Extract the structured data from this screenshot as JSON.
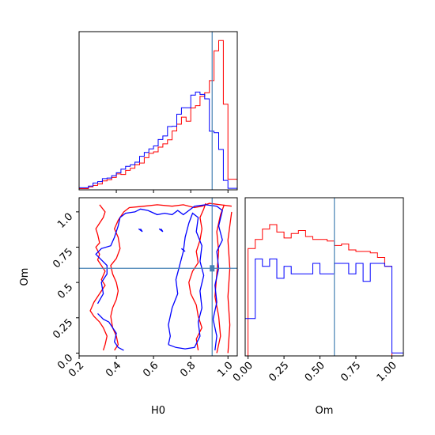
{
  "chart_data": [
    {
      "type": "histogram",
      "panel": "H0 marginal",
      "xlim": [
        0.2,
        1.05
      ],
      "x_ticks": [
        0.4,
        0.6,
        0.8,
        1.0
      ],
      "truth": 0.915,
      "series": [
        {
          "color": "#ff0000",
          "edges": [
            0.2,
            0.25,
            0.275,
            0.3,
            0.325,
            0.35,
            0.375,
            0.4,
            0.425,
            0.45,
            0.475,
            0.5,
            0.525,
            0.55,
            0.575,
            0.6,
            0.625,
            0.65,
            0.675,
            0.7,
            0.725,
            0.75,
            0.775,
            0.8,
            0.825,
            0.85,
            0.875,
            0.9,
            0.925,
            0.95,
            0.975,
            1.0,
            1.05
          ],
          "heights": [
            0.4,
            1.0,
            1.5,
            2.0,
            3.0,
            3.4,
            4.2,
            5.4,
            5.2,
            6.6,
            7.3,
            8.5,
            9.1,
            10.9,
            12.4,
            12.9,
            14.5,
            15.6,
            17.0,
            20.0,
            22.3,
            24.7,
            23.3,
            27.8,
            28.6,
            31.8,
            33.0,
            37.1,
            47.2,
            50.7,
            29.1,
            3.6
          ]
        },
        {
          "color": "#0000ff",
          "edges": [
            0.2,
            0.25,
            0.275,
            0.3,
            0.325,
            0.35,
            0.375,
            0.4,
            0.425,
            0.45,
            0.475,
            0.5,
            0.525,
            0.55,
            0.575,
            0.6,
            0.625,
            0.65,
            0.675,
            0.7,
            0.725,
            0.75,
            0.775,
            0.8,
            0.825,
            0.85,
            0.875,
            0.9,
            0.925,
            0.95,
            0.975,
            1.0,
            1.05
          ],
          "heights": [
            0.7,
            1.3,
            2.3,
            2.8,
            3.8,
            4.0,
            4.8,
            5.8,
            7.0,
            8.0,
            8.5,
            9.4,
            11.4,
            12.7,
            13.9,
            14.9,
            17.1,
            18.3,
            21.5,
            21.6,
            25.7,
            27.9,
            27.9,
            32.2,
            33.2,
            32.4,
            30.9,
            19.9,
            19.4,
            13.7,
            3.2,
            0.5
          ]
        }
      ]
    },
    {
      "type": "contour",
      "panel": "H0 vs Om",
      "xlabel": "H0",
      "ylabel": "Om",
      "xlim": [
        0.2,
        1.05
      ],
      "ylim": [
        -0.02,
        1.1
      ],
      "x_ticks": [
        0.2,
        0.4,
        0.6,
        0.8,
        1.0
      ],
      "y_ticks": [
        0.0,
        0.25,
        0.5,
        0.75,
        1.0
      ],
      "truth": {
        "H0": 0.915,
        "Om": 0.6
      },
      "series": [
        {
          "color": "#ff0000",
          "contours": [
            [
              [
                0.31,
                1.05
              ],
              [
                0.34,
                1.0
              ],
              [
                0.33,
                0.96
              ],
              [
                0.31,
                0.92
              ],
              [
                0.29,
                0.88
              ],
              [
                0.3,
                0.84
              ],
              [
                0.31,
                0.78
              ],
              [
                0.29,
                0.75
              ],
              [
                0.31,
                0.7
              ],
              [
                0.3,
                0.66
              ],
              [
                0.32,
                0.62
              ],
              [
                0.34,
                0.58
              ],
              [
                0.32,
                0.52
              ],
              [
                0.34,
                0.48
              ],
              [
                0.32,
                0.44
              ],
              [
                0.3,
                0.4
              ],
              [
                0.28,
                0.36
              ],
              [
                0.26,
                0.3
              ],
              [
                0.28,
                0.26
              ],
              [
                0.31,
                0.22
              ],
              [
                0.33,
                0.18
              ],
              [
                0.35,
                0.12
              ],
              [
                0.34,
                0.06
              ],
              [
                0.33,
                0.02
              ]
            ],
            [
              [
                0.39,
                0.02
              ],
              [
                0.41,
                0.06
              ],
              [
                0.4,
                0.12
              ],
              [
                0.38,
                0.18
              ],
              [
                0.37,
                0.26
              ],
              [
                0.38,
                0.32
              ],
              [
                0.4,
                0.38
              ],
              [
                0.41,
                0.44
              ],
              [
                0.4,
                0.5
              ],
              [
                0.38,
                0.56
              ],
              [
                0.37,
                0.62
              ],
              [
                0.4,
                0.67
              ],
              [
                0.42,
                0.74
              ],
              [
                0.41,
                0.82
              ],
              [
                0.39,
                0.88
              ],
              [
                0.41,
                0.94
              ],
              [
                0.44,
                1.0
              ],
              [
                0.47,
                1.03
              ],
              [
                0.55,
                1.04
              ],
              [
                0.62,
                1.05
              ],
              [
                0.7,
                1.04
              ],
              [
                0.76,
                1.05
              ],
              [
                0.82,
                1.03
              ],
              [
                0.86,
                1.04
              ],
              [
                0.9,
                1.06
              ],
              [
                0.96,
                1.05
              ],
              [
                1.02,
                1.04
              ]
            ],
            [
              [
                0.84,
                0.02
              ],
              [
                0.83,
                0.1
              ],
              [
                0.86,
                0.18
              ],
              [
                0.84,
                0.26
              ],
              [
                0.83,
                0.34
              ],
              [
                0.8,
                0.42
              ],
              [
                0.79,
                0.5
              ],
              [
                0.81,
                0.58
              ],
              [
                0.84,
                0.64
              ],
              [
                0.83,
                0.72
              ],
              [
                0.85,
                0.8
              ],
              [
                0.86,
                0.88
              ],
              [
                0.85,
                0.96
              ],
              [
                0.87,
                1.02
              ],
              [
                0.88,
                1.06
              ]
            ],
            [
              [
                0.94,
                0.0
              ],
              [
                0.96,
                0.12
              ],
              [
                0.95,
                0.26
              ],
              [
                0.93,
                0.4
              ],
              [
                0.94,
                0.56
              ],
              [
                0.95,
                0.72
              ],
              [
                0.94,
                0.86
              ],
              [
                0.96,
                0.98
              ],
              [
                0.98,
                1.05
              ]
            ],
            [
              [
                1.0,
                0.0
              ],
              [
                1.01,
                0.2
              ],
              [
                1.0,
                0.4
              ],
              [
                1.01,
                0.6
              ],
              [
                1.0,
                0.8
              ],
              [
                1.02,
                1.0
              ]
            ]
          ]
        },
        {
          "color": "#0000ff",
          "contours": [
            [
              [
                0.3,
                0.28
              ],
              [
                0.33,
                0.24
              ],
              [
                0.36,
                0.22
              ],
              [
                0.38,
                0.18
              ],
              [
                0.4,
                0.14
              ],
              [
                0.39,
                0.08
              ],
              [
                0.41,
                0.04
              ],
              [
                0.44,
                0.02
              ]
            ],
            [
              [
                0.3,
                0.35
              ],
              [
                0.33,
                0.42
              ],
              [
                0.32,
                0.5
              ],
              [
                0.35,
                0.56
              ],
              [
                0.35,
                0.62
              ],
              [
                0.32,
                0.66
              ],
              [
                0.29,
                0.7
              ],
              [
                0.32,
                0.74
              ],
              [
                0.37,
                0.76
              ],
              [
                0.39,
                0.82
              ],
              [
                0.41,
                0.9
              ],
              [
                0.42,
                0.96
              ],
              [
                0.45,
                0.99
              ],
              [
                0.5,
                1.0
              ],
              [
                0.53,
                1.02
              ],
              [
                0.57,
                1.01
              ],
              [
                0.62,
                0.98
              ],
              [
                0.66,
                0.99
              ],
              [
                0.7,
                0.98
              ],
              [
                0.73,
                1.01
              ],
              [
                0.76,
                0.98
              ],
              [
                0.78,
                1.0
              ],
              [
                0.82,
                1.04
              ],
              [
                0.88,
                1.05
              ],
              [
                0.94,
                1.04
              ],
              [
                0.97,
                1.01
              ],
              [
                0.95,
                0.9
              ],
              [
                0.97,
                0.8
              ],
              [
                0.94,
                0.72
              ],
              [
                0.95,
                0.6
              ],
              [
                0.93,
                0.48
              ],
              [
                0.94,
                0.36
              ],
              [
                0.92,
                0.24
              ],
              [
                0.94,
                0.12
              ],
              [
                0.93,
                0.02
              ]
            ],
            [
              [
                0.68,
                0.06
              ],
              [
                0.72,
                0.04
              ],
              [
                0.77,
                0.03
              ],
              [
                0.82,
                0.04
              ],
              [
                0.85,
                0.12
              ],
              [
                0.84,
                0.22
              ],
              [
                0.86,
                0.32
              ],
              [
                0.85,
                0.44
              ],
              [
                0.87,
                0.55
              ],
              [
                0.85,
                0.65
              ],
              [
                0.86,
                0.76
              ],
              [
                0.83,
                0.86
              ],
              [
                0.84,
                0.96
              ],
              [
                0.81,
                0.99
              ],
              [
                0.79,
                0.92
              ],
              [
                0.77,
                0.82
              ],
              [
                0.76,
                0.72
              ],
              [
                0.74,
                0.62
              ],
              [
                0.72,
                0.52
              ],
              [
                0.73,
                0.42
              ],
              [
                0.7,
                0.32
              ],
              [
                0.68,
                0.2
              ],
              [
                0.69,
                0.12
              ],
              [
                0.68,
                0.06
              ]
            ],
            [
              [
                0.52,
                0.88
              ],
              [
                0.54,
                0.86
              ],
              [
                0.53,
                0.88
              ]
            ],
            [
              [
                0.63,
                0.88
              ],
              [
                0.65,
                0.86
              ],
              [
                0.64,
                0.88
              ]
            ],
            [
              [
                0.75,
                0.74
              ],
              [
                0.77,
                0.72
              ],
              [
                0.76,
                0.73
              ]
            ]
          ]
        }
      ]
    },
    {
      "type": "histogram",
      "panel": "Om marginal",
      "xlabel": "Om",
      "xlim": [
        -0.02,
        1.08
      ],
      "x_ticks": [
        0.0,
        0.25,
        0.5,
        0.75,
        1.0
      ],
      "x_tick_labels": [
        "0.00",
        "0.25",
        "0.50",
        "0.75",
        "1.00"
      ],
      "truth": 0.6,
      "series": [
        {
          "color": "#ff0000",
          "edges": [
            0.0,
            0.05,
            0.1,
            0.15,
            0.2,
            0.25,
            0.3,
            0.35,
            0.4,
            0.45,
            0.5,
            0.55,
            0.6,
            0.65,
            0.7,
            0.75,
            0.8,
            0.85,
            0.9,
            0.95,
            1.0
          ],
          "heights": [
            0.72,
            0.78,
            0.85,
            0.88,
            0.83,
            0.79,
            0.82,
            0.84,
            0.8,
            0.78,
            0.78,
            0.77,
            0.74,
            0.75,
            0.71,
            0.7,
            0.7,
            0.69,
            0.66,
            0.6
          ]
        },
        {
          "color": "#0000ff",
          "edges": [
            -0.02,
            0.03,
            0.05,
            0.1,
            0.15,
            0.2,
            0.25,
            0.3,
            0.35,
            0.4,
            0.45,
            0.5,
            0.55,
            0.6,
            0.65,
            0.7,
            0.75,
            0.8,
            0.85,
            0.9,
            0.95,
            1.0,
            1.05,
            1.08
          ],
          "heights": [
            0.25,
            0.25,
            0.65,
            0.6,
            0.65,
            0.52,
            0.6,
            0.55,
            0.55,
            0.55,
            0.62,
            0.55,
            0.55,
            0.62,
            0.62,
            0.55,
            0.62,
            0.5,
            0.62,
            0.62,
            0.6,
            0.02,
            0.02
          ]
        }
      ]
    }
  ]
}
